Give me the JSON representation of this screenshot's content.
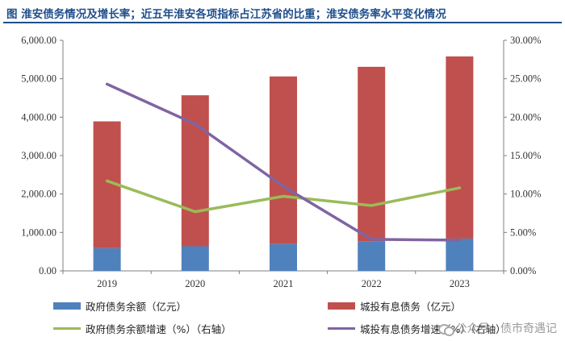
{
  "title": "图   淮安债务情况及增长率；近五年淮安各项指标占江苏省的比重；淮安债务率水平变化情况",
  "chart_data": {
    "type": "bar+line",
    "categories": [
      "2019",
      "2020",
      "2021",
      "2022",
      "2023"
    ],
    "bars": {
      "stacked": true,
      "series": [
        {
          "name": "政府债务余额（亿元）",
          "values": [
            590,
            640,
            700,
            760,
            840
          ],
          "color": "#4f81bd"
        },
        {
          "name": "城投有息债务（亿元）",
          "values": [
            3300,
            3930,
            4360,
            4550,
            4740
          ],
          "color": "#c0504d"
        }
      ]
    },
    "lines": [
      {
        "name": "政府债务余额增速（%）（右轴）",
        "values": [
          11.7,
          7.7,
          9.7,
          8.5,
          10.8
        ],
        "color": "#9bbb59",
        "axis": "right"
      },
      {
        "name": "城投有息债务增速（%）（右轴）",
        "values": [
          24.3,
          19.1,
          11.0,
          4.1,
          4.0
        ],
        "color": "#8064a2",
        "axis": "right"
      }
    ],
    "y_left": {
      "min": 0,
      "max": 6000,
      "ticks": [
        "0.00",
        "1,000.00",
        "2,000.00",
        "3,000.00",
        "4,000.00",
        "5,000.00",
        "6,000.00"
      ]
    },
    "y_right": {
      "min": 0,
      "max": 30,
      "ticks": [
        "0.00%",
        "5.00%",
        "10.00%",
        "15.00%",
        "20.00%",
        "25.00%",
        "30.00%"
      ]
    },
    "legend": [
      {
        "label": "政府债务余额（亿元）",
        "kind": "box",
        "color": "#4f81bd"
      },
      {
        "label": "城投有息债务（亿元）",
        "kind": "box",
        "color": "#c0504d"
      },
      {
        "label": "政府债务余额增速（%）（右轴）",
        "kind": "line",
        "color": "#9bbb59"
      },
      {
        "label": "城投有息债务增速（%）（右轴）",
        "kind": "line",
        "color": "#8064a2"
      }
    ]
  },
  "watermark": "公众号 · 债市奇遇记"
}
